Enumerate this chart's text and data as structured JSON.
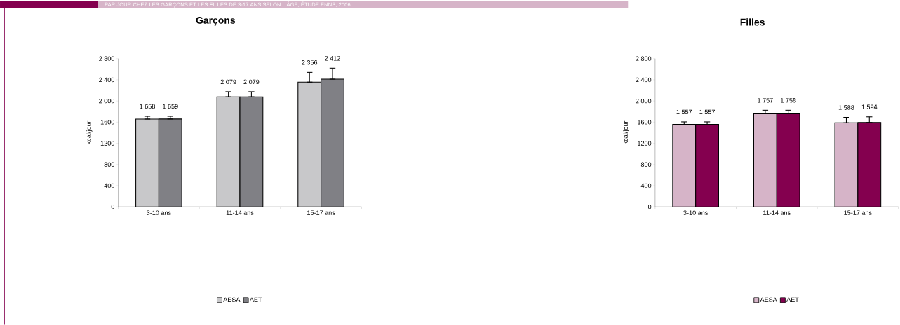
{
  "chart_data": [
    {
      "type": "bar",
      "title": "Garçons",
      "annotations": [
        "PAR JOUR CHEZ LES GARÇONS ET LES FILLES DE 3-17 ANS SELON L'ÂGE, ÉTUDE ENNS, 2006"
      ],
      "ylabel": "kcal/jour",
      "categories": [
        "3-10 ans",
        "11-14 ans",
        "15-17 ans"
      ],
      "series": [
        {
          "name": "AESA",
          "color": "#c8c8ca",
          "values": [
            1658,
            2079,
            2356
          ],
          "value_labels": [
            "1 658",
            "2 079",
            "2 356"
          ],
          "errors": [
            [
              1658,
              1710
            ],
            [
              2079,
              2175
            ],
            [
              2356,
              2540
            ]
          ]
        },
        {
          "name": "AET",
          "color": "#808085",
          "values": [
            1659,
            2079,
            2412
          ],
          "value_labels": [
            "1 659",
            "2 079",
            "2 412"
          ],
          "errors": [
            [
              1659,
              1710
            ],
            [
              2079,
              2175
            ],
            [
              2412,
              2620
            ]
          ]
        }
      ],
      "ylim": [
        0,
        2800
      ],
      "yticks": [
        0,
        400,
        800,
        1200,
        1600,
        {
          "value": 2000,
          "label": "2 000"
        },
        {
          "value": 2400,
          "label": "2 400"
        },
        {
          "value": 2800,
          "label": "2 800"
        }
      ],
      "legend": "bottom",
      "grid": false
    },
    {
      "type": "bar",
      "title": "Filles",
      "ylabel": "kcal/jour",
      "categories": [
        "3-10 ans",
        "11-14 ans",
        "15-17 ans"
      ],
      "series": [
        {
          "name": "AESA",
          "color": "#d6b4c8",
          "values": [
            1557,
            1757,
            1588
          ],
          "value_labels": [
            "1 557",
            "1 757",
            "1 588"
          ],
          "errors": [
            [
              1557,
              1605
            ],
            [
              1757,
              1825
            ],
            [
              1588,
              1690
            ]
          ]
        },
        {
          "name": "AET",
          "color": "#84004f",
          "values": [
            1557,
            1758,
            1594
          ],
          "value_labels": [
            "1 557",
            "1 758",
            "1 594"
          ],
          "errors": [
            [
              1557,
              1605
            ],
            [
              1758,
              1825
            ],
            [
              1594,
              1700
            ]
          ]
        }
      ],
      "ylim": [
        0,
        2800
      ],
      "yticks": [
        0,
        400,
        800,
        1200,
        1600,
        {
          "value": 2000,
          "label": "2 000"
        },
        {
          "value": 2400,
          "label": "2 400"
        },
        {
          "value": 2800,
          "label": "2 800"
        }
      ],
      "legend": "bottom",
      "grid": false
    }
  ]
}
